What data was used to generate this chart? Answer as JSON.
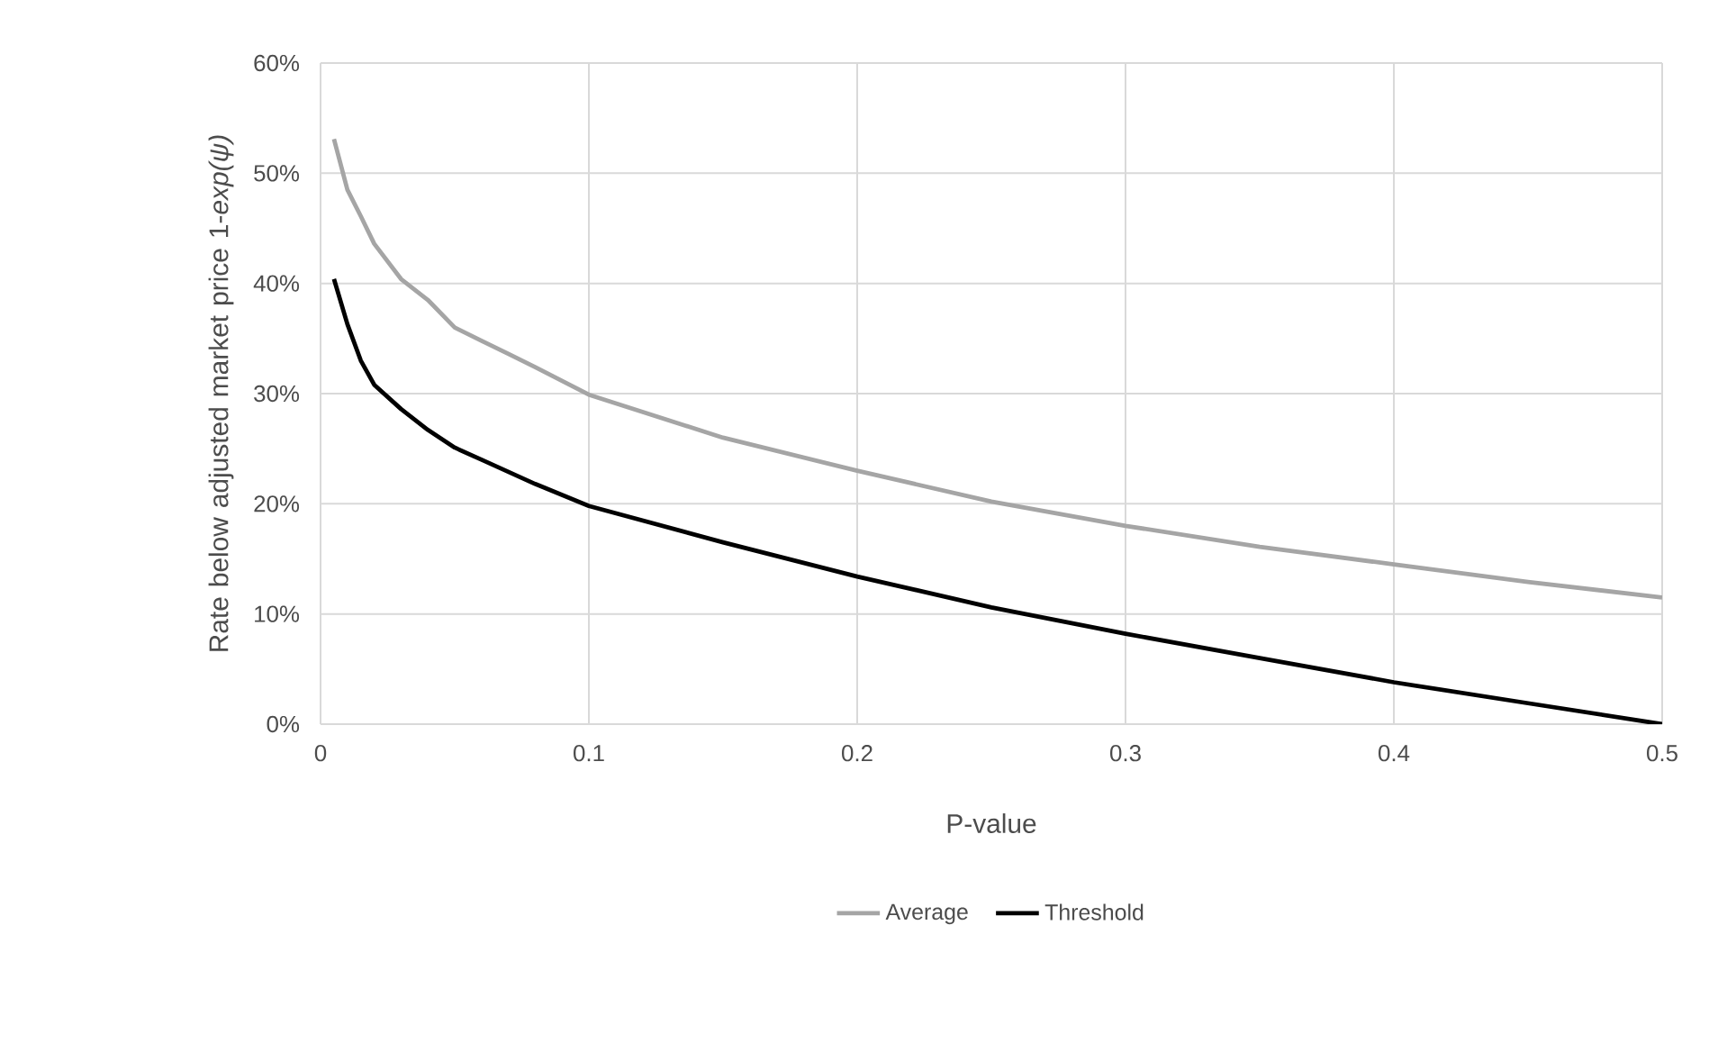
{
  "chart_data": {
    "type": "line",
    "xlabel": "P-value",
    "ylabel": "Rate below adjusted market price 1-*exp(ψ)*",
    "xlim": [
      0,
      0.5
    ],
    "xticks": [
      0,
      0.1,
      0.2,
      0.3,
      0.4,
      0.5
    ],
    "ylim": [
      0,
      60
    ],
    "yticks": [
      {
        "value": 0,
        "label": "0%"
      },
      {
        "value": 10,
        "label": "10%"
      },
      {
        "value": 20,
        "label": "20%"
      },
      {
        "value": 30,
        "label": "30%"
      },
      {
        "value": 40,
        "label": "40%"
      },
      {
        "value": 50,
        "label": "50%"
      },
      {
        "value": 60,
        "label": "60%"
      }
    ],
    "grid": true,
    "legend": "bottom",
    "series": [
      {
        "name": "Average",
        "color": "#a5a5a5",
        "x": [
          0.005,
          0.01,
          0.015,
          0.02,
          0.03,
          0.04,
          0.05,
          0.06,
          0.07,
          0.08,
          0.1,
          0.15,
          0.2,
          0.25,
          0.3,
          0.35,
          0.4,
          0.45,
          0.5
        ],
        "values": [
          53.1,
          48.5,
          46.1,
          43.6,
          40.4,
          38.5,
          36.0,
          34.8,
          33.6,
          32.4,
          29.9,
          26.0,
          23.0,
          20.2,
          18.0,
          16.1,
          14.5,
          12.9,
          11.5
        ]
      },
      {
        "name": "Threshold",
        "color": "#000000",
        "x": [
          0.005,
          0.01,
          0.015,
          0.02,
          0.03,
          0.04,
          0.05,
          0.06,
          0.07,
          0.08,
          0.1,
          0.15,
          0.2,
          0.25,
          0.3,
          0.35,
          0.4,
          0.45,
          0.5
        ],
        "values": [
          40.4,
          36.3,
          33.0,
          30.8,
          28.6,
          26.7,
          25.1,
          24.0,
          22.9,
          21.8,
          19.8,
          16.5,
          13.4,
          10.6,
          8.2,
          6.0,
          3.8,
          1.9,
          0
        ]
      }
    ]
  }
}
